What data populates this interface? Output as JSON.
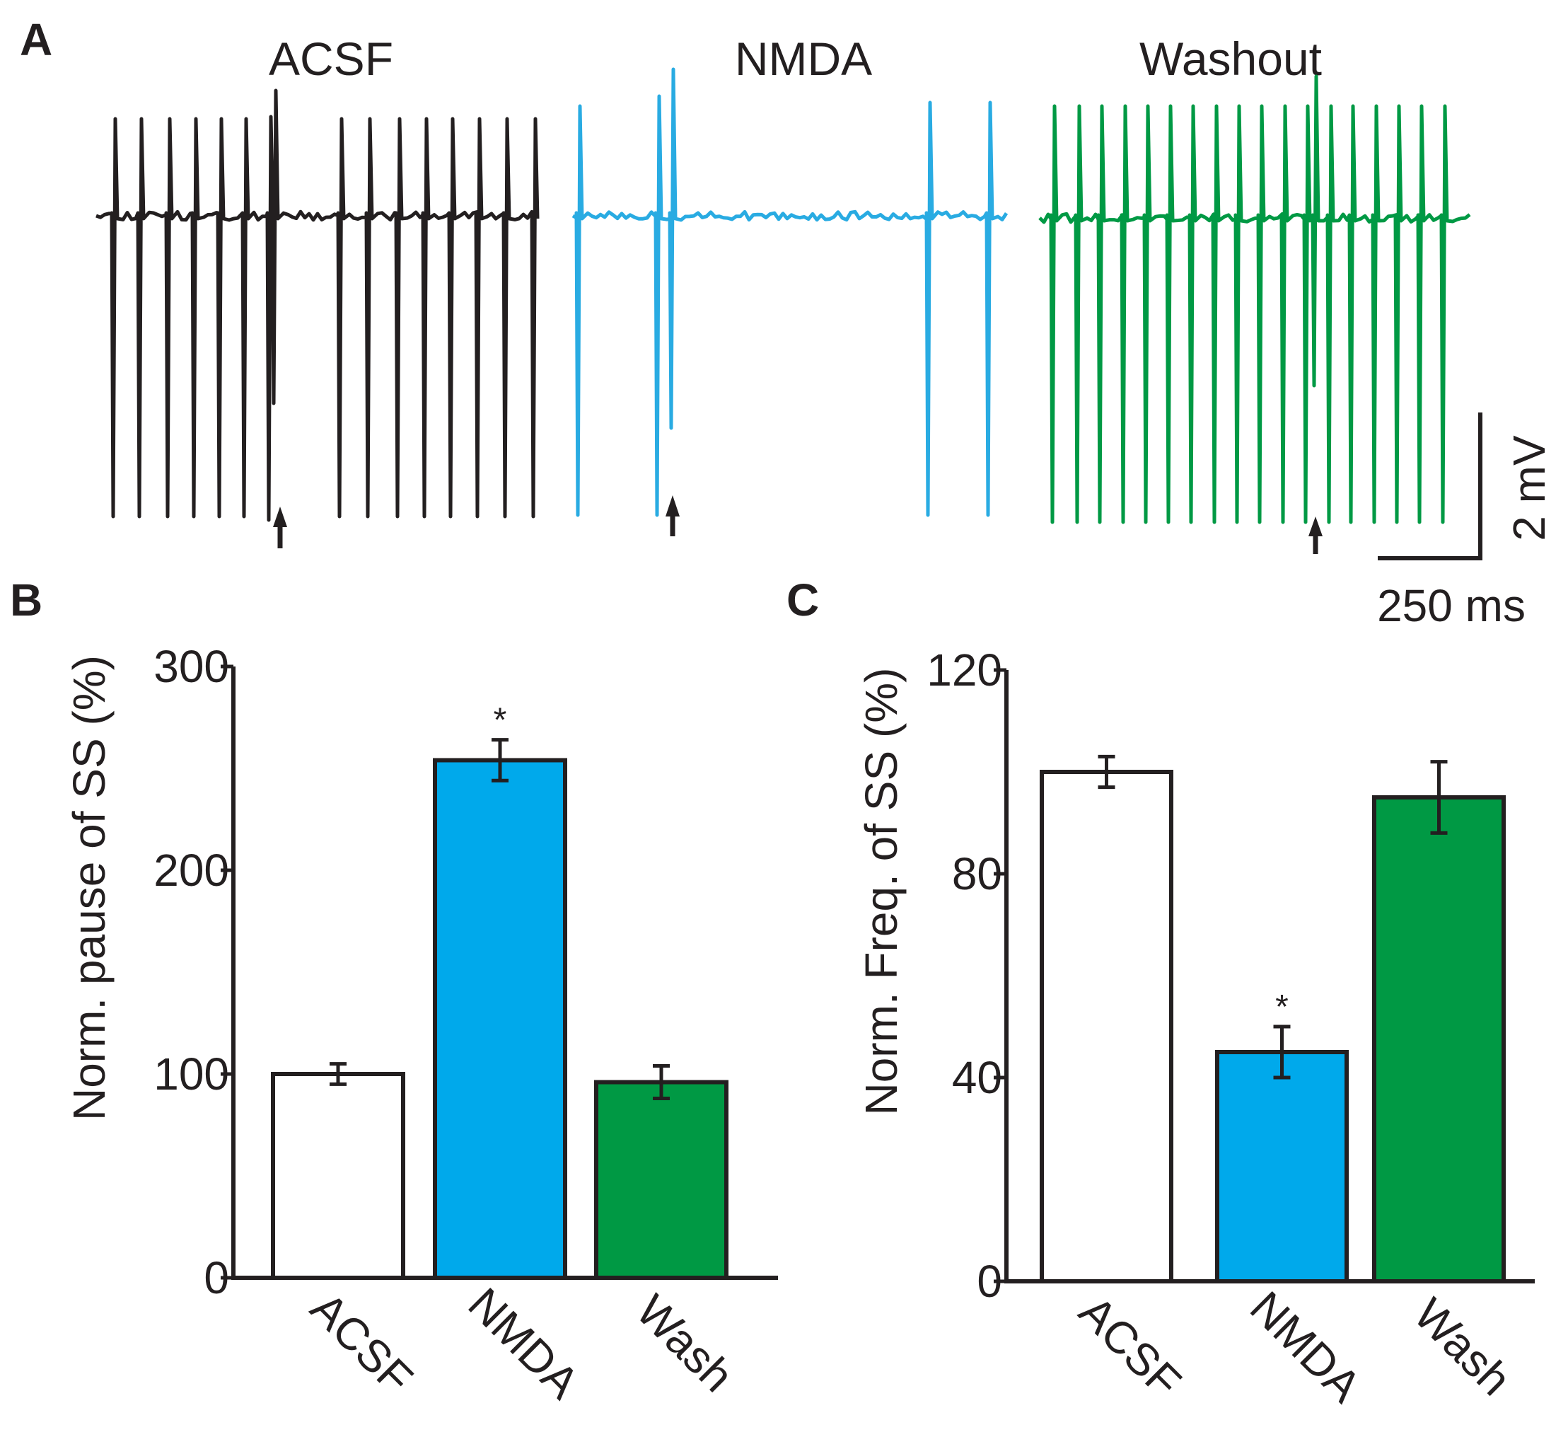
{
  "panels": {
    "a": "A",
    "b": "B",
    "c": "C"
  },
  "traces": {
    "titles": [
      "ACSF",
      "NMDA",
      "Washout"
    ],
    "colors": [
      "#231f20",
      "#29abe2",
      "#009944"
    ],
    "scalebar": {
      "voltage": "2 mV",
      "time": "250 ms"
    }
  },
  "colors": {
    "axis": "#231f20",
    "acsf_fill": "#ffffff",
    "nmda_fill": "#00a9eb",
    "wash_fill": "#009944"
  },
  "chart_data": [
    {
      "type": "bar",
      "ylabel": "Norm. pause of SS (%)",
      "xlabel": "",
      "ylim": [
        0,
        300
      ],
      "yticks": [
        "0",
        "100",
        "200",
        "300"
      ],
      "categories": [
        "ACSF",
        "NMDA",
        "Wash"
      ],
      "values": [
        100,
        254,
        96
      ],
      "errors": [
        5,
        10,
        8
      ],
      "significance": [
        "",
        "*",
        ""
      ]
    },
    {
      "type": "bar",
      "ylabel": "Norm. Freq. of SS (%)",
      "xlabel": "",
      "ylim": [
        0,
        120
      ],
      "yticks": [
        "0",
        "40",
        "80",
        "120"
      ],
      "categories": [
        "ACSF",
        "NMDA",
        "Wash"
      ],
      "values": [
        100,
        45,
        95
      ],
      "errors": [
        3,
        5,
        7
      ],
      "significance": [
        "",
        "*",
        ""
      ]
    }
  ]
}
